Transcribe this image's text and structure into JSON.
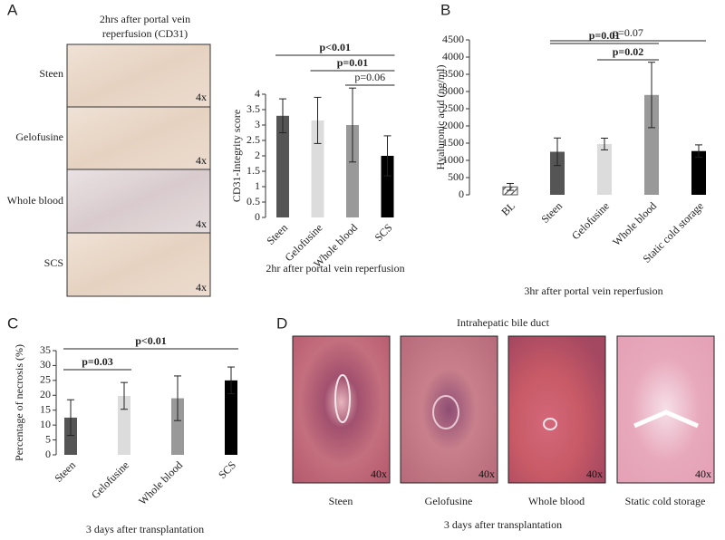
{
  "panel_letters": [
    "A",
    "B",
    "C",
    "D"
  ],
  "image_panels": [
    {
      "title_lines": [
        "2hrs after portal vein",
        "reperfusion (CD31)"
      ],
      "images": [
        {
          "label": "Steen",
          "magnification": "4x"
        },
        {
          "label": "Gelofusine",
          "magnification": "4x"
        },
        {
          "label": "Whole blood",
          "magnification": "4x"
        },
        {
          "label": "SCS",
          "magnification": "4x"
        }
      ]
    },
    {
      "title": "Intrahepatic bile duct",
      "images": [
        {
          "label": "Steen",
          "magnification": "40x"
        },
        {
          "label": "Gelofusine",
          "magnification": "40x"
        },
        {
          "label": "Whole blood",
          "magnification": "40x"
        },
        {
          "label": "Static cold storage",
          "magnification": "40x"
        }
      ],
      "caption": "3 days after transplantation"
    }
  ],
  "chart_data": [
    {
      "type": "bar",
      "ylabel": "CD31-Integrity score",
      "xlabel": "2hr after portal vein reperfusion",
      "categories": [
        "Steen",
        "Gelofusine",
        "Whole blood",
        "SCS"
      ],
      "values": [
        3.3,
        3.15,
        3.0,
        2.0
      ],
      "errors": [
        0.55,
        0.75,
        1.2,
        0.65
      ],
      "colors": [
        "#555555",
        "#dcdcdc",
        "#999999",
        "#000000"
      ],
      "ylim": [
        0,
        4
      ],
      "yticks": [
        0,
        0.5,
        1,
        1.5,
        2,
        2.5,
        3,
        3.5,
        4
      ],
      "annotations": [
        {
          "label": "p<0.01",
          "from": "Steen",
          "to": "SCS",
          "bold": true
        },
        {
          "label": "p=0.01",
          "from": "Gelofusine",
          "to": "SCS",
          "bold": true
        },
        {
          "label": "p=0.06",
          "from": "Whole blood",
          "to": "SCS",
          "bold": false
        }
      ]
    },
    {
      "type": "bar",
      "ylabel": "Hyaluronic acid (ng/ml)",
      "xlabel": "3hr after portal vein reperfusion",
      "categories": [
        "BL",
        "Steen",
        "Gelofusine",
        "Whole blood",
        "Static cold storage"
      ],
      "values": [
        230,
        1250,
        1475,
        2900,
        1270
      ],
      "errors": [
        100,
        400,
        170,
        950,
        180
      ],
      "colors": [
        "#555555",
        "#555555",
        "#dcdcdc",
        "#999999",
        "#000000"
      ],
      "hatched": [
        true,
        false,
        false,
        false,
        false
      ],
      "ylim": [
        0,
        4500
      ],
      "yticks": [
        0,
        500,
        1000,
        1500,
        2000,
        2500,
        3000,
        3500,
        4000,
        4500
      ],
      "annotations": [
        {
          "label": "p=0.01",
          "from": "Steen",
          "to": "Whole blood",
          "bold": true
        },
        {
          "label": "p=0.02",
          "from": "Gelofusine",
          "to": "Whole blood",
          "bold": true
        },
        {
          "label": "p=0.07",
          "from": "Steen",
          "to": "Static cold storage",
          "bold": false
        }
      ]
    },
    {
      "type": "bar",
      "ylabel": "Percentage of necrosis (%)",
      "xlabel": "3 days after transplantation",
      "categories": [
        "Steen",
        "Gelofusine",
        "Whole blood",
        "SCS"
      ],
      "values": [
        12.5,
        19.8,
        19,
        25
      ],
      "errors": [
        6,
        4.5,
        7.5,
        4.5
      ],
      "colors": [
        "#555555",
        "#dcdcdc",
        "#999999",
        "#000000"
      ],
      "ylim": [
        0,
        35
      ],
      "yticks": [
        0,
        5,
        10,
        15,
        20,
        25,
        30,
        35
      ],
      "annotations": [
        {
          "label": "p=0.03",
          "from": "Steen",
          "to": "Gelofusine",
          "bold": true
        },
        {
          "label": "p<0.01",
          "from": "Steen",
          "to": "SCS",
          "bold": true
        }
      ]
    }
  ]
}
